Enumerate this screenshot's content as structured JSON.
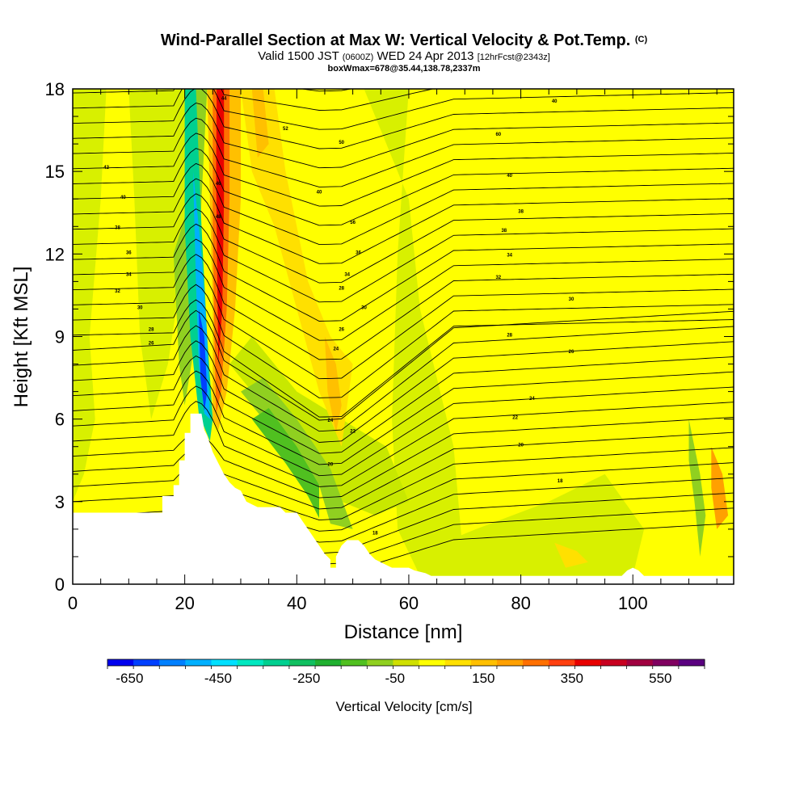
{
  "chart_data": {
    "type": "heatmap",
    "title": "Wind-Parallel Section at Max W: Vertical Velocity & Pot.Temp.",
    "title_suffix": "(C)",
    "subtitle_parts": {
      "valid": "Valid 1500 JST",
      "utc": "(0600Z)",
      "date": "WED 24 Apr 2013",
      "fcst": "[12hrFcst@2343z]"
    },
    "subtitle2": "boxWmax=678@35.44,138.78,2337m",
    "xlabel": "Distance [nm]",
    "ylabel": "Height [Kft MSL]",
    "xlim": [
      0,
      118
    ],
    "ylim": [
      0,
      18
    ],
    "x_ticks": [
      "0",
      "20",
      "40",
      "60",
      "80",
      "100"
    ],
    "y_ticks": [
      "0",
      "3",
      "6",
      "9",
      "12",
      "15",
      "18"
    ],
    "colorbar": {
      "label": "Vertical Velocity [cm/s]",
      "tick_labels": [
        "-650",
        "-450",
        "-250",
        "-50",
        "150",
        "350",
        "550"
      ],
      "range": [
        -700,
        650
      ],
      "colors": [
        "#0000ee",
        "#0040ff",
        "#0080ff",
        "#00b0ff",
        "#00e0ff",
        "#00e8c0",
        "#00d090",
        "#10c060",
        "#20b030",
        "#50c020",
        "#90d020",
        "#d0e000",
        "#ffff00",
        "#ffe000",
        "#ffc000",
        "#ffa000",
        "#ff7000",
        "#ff4010",
        "#e80000",
        "#c80020",
        "#a00040",
        "#800060",
        "#5a0080"
      ]
    },
    "terrain": [
      [
        0,
        2.6
      ],
      [
        16,
        2.6
      ],
      [
        16,
        3.2
      ],
      [
        18,
        3.2
      ],
      [
        18,
        3.6
      ],
      [
        19,
        3.6
      ],
      [
        19,
        4.5
      ],
      [
        20,
        4.5
      ],
      [
        20,
        5.5
      ],
      [
        21,
        5.5
      ],
      [
        21,
        6.2
      ],
      [
        22,
        6.2
      ],
      [
        23,
        6.2
      ],
      [
        23.5,
        5.6
      ],
      [
        24,
        5.4
      ],
      [
        25,
        4.8
      ],
      [
        26,
        4.4
      ],
      [
        27,
        4.0
      ],
      [
        28,
        3.7
      ],
      [
        29,
        3.5
      ],
      [
        30,
        3.4
      ],
      [
        31,
        3.0
      ],
      [
        32,
        2.9
      ],
      [
        33,
        2.8
      ],
      [
        37,
        2.8
      ],
      [
        38,
        2.6
      ],
      [
        40,
        2.6
      ],
      [
        41,
        2.3
      ],
      [
        42,
        2.0
      ],
      [
        43,
        1.7
      ],
      [
        44,
        1.4
      ],
      [
        45,
        1.1
      ],
      [
        46,
        0.9
      ],
      [
        46,
        0.6
      ],
      [
        47,
        0.6
      ],
      [
        47,
        1.0
      ],
      [
        48,
        1.4
      ],
      [
        49,
        1.6
      ],
      [
        51,
        1.6
      ],
      [
        52,
        1.4
      ],
      [
        53,
        1.1
      ],
      [
        54,
        0.9
      ],
      [
        56,
        0.7
      ],
      [
        57,
        0.6
      ],
      [
        60,
        0.6
      ],
      [
        61,
        0.5
      ],
      [
        63,
        0.4
      ],
      [
        64,
        0.3
      ],
      [
        98,
        0.3
      ],
      [
        99,
        0.5
      ],
      [
        100,
        0.6
      ],
      [
        101,
        0.5
      ],
      [
        102,
        0.3
      ],
      [
        118,
        0.3
      ]
    ],
    "theta_contour_labels": [
      {
        "text": "44",
        "x": 27,
        "y": 17.6
      },
      {
        "text": "40",
        "x": 86,
        "y": 17.5
      },
      {
        "text": "50",
        "x": 48,
        "y": 16.0
      },
      {
        "text": "52",
        "x": 38,
        "y": 16.5
      },
      {
        "text": "60",
        "x": 76,
        "y": 16.3
      },
      {
        "text": "42",
        "x": 6,
        "y": 15.1
      },
      {
        "text": "40",
        "x": 78,
        "y": 14.8
      },
      {
        "text": "46",
        "x": 26,
        "y": 14.5
      },
      {
        "text": "40",
        "x": 44,
        "y": 14.2
      },
      {
        "text": "40",
        "x": 9,
        "y": 14.0
      },
      {
        "text": "38",
        "x": 80,
        "y": 13.5
      },
      {
        "text": "38",
        "x": 8,
        "y": 12.9
      },
      {
        "text": "48",
        "x": 26,
        "y": 13.3
      },
      {
        "text": "56",
        "x": 50,
        "y": 13.1
      },
      {
        "text": "38",
        "x": 77,
        "y": 12.8
      },
      {
        "text": "36",
        "x": 10,
        "y": 12.0
      },
      {
        "text": "36",
        "x": 51,
        "y": 12.0
      },
      {
        "text": "34",
        "x": 78,
        "y": 11.9
      },
      {
        "text": "34",
        "x": 10,
        "y": 11.2
      },
      {
        "text": "34",
        "x": 49,
        "y": 11.2
      },
      {
        "text": "32",
        "x": 76,
        "y": 11.1
      },
      {
        "text": "32",
        "x": 8,
        "y": 10.6
      },
      {
        "text": "28",
        "x": 48,
        "y": 10.7
      },
      {
        "text": "30",
        "x": 89,
        "y": 10.3
      },
      {
        "text": "30",
        "x": 12,
        "y": 10.0
      },
      {
        "text": "30",
        "x": 52,
        "y": 10.0
      },
      {
        "text": "28",
        "x": 14,
        "y": 9.2
      },
      {
        "text": "26",
        "x": 48,
        "y": 9.2
      },
      {
        "text": "28",
        "x": 78,
        "y": 9.0
      },
      {
        "text": "26",
        "x": 14,
        "y": 8.7
      },
      {
        "text": "24",
        "x": 47,
        "y": 8.5
      },
      {
        "text": "26",
        "x": 89,
        "y": 8.4
      },
      {
        "text": "24",
        "x": 82,
        "y": 6.7
      },
      {
        "text": "24",
        "x": 46,
        "y": 5.9
      },
      {
        "text": "22",
        "x": 79,
        "y": 6.0
      },
      {
        "text": "22",
        "x": 50,
        "y": 5.5
      },
      {
        "text": "20",
        "x": 80,
        "y": 5.0
      },
      {
        "text": "20",
        "x": 46,
        "y": 4.3
      },
      {
        "text": "18",
        "x": 87,
        "y": 3.7
      },
      {
        "text": "18",
        "x": 54,
        "y": 1.8
      }
    ]
  }
}
